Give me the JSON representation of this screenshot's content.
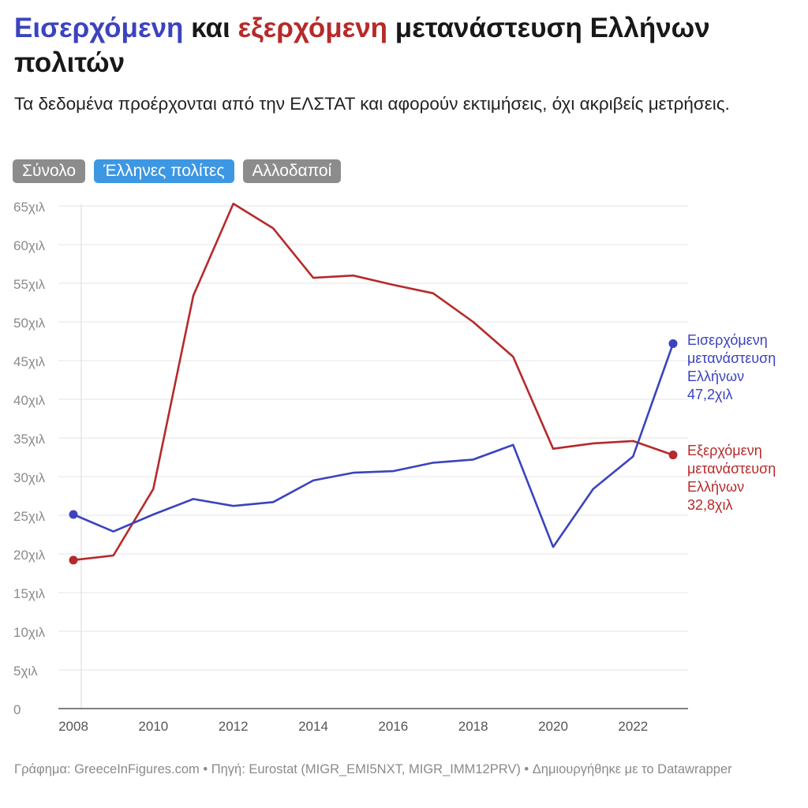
{
  "header": {
    "title_part1": "Εισερχόμενη",
    "title_part2": " και ",
    "title_part3": "εξερχόμενη",
    "title_part4": " μετανάστευση Ελλήνων πολιτών",
    "subtitle": "Τα δεδομένα προέρχονται από την ΕΛΣΤΑΤ και αφορούν εκτιμήσεις, όχι ακριβείς μετρήσεις."
  },
  "toggles": [
    {
      "label": "Σύνολο",
      "active": false
    },
    {
      "label": "Έλληνες πολίτες",
      "active": true
    },
    {
      "label": "Αλλοδαποί",
      "active": false
    }
  ],
  "colors": {
    "inbound": "#3b43be",
    "outbound": "#b62a2a",
    "grid": "#e6e6e6",
    "axis_text": "#8a8a8a",
    "toggle_active": "#3d97e3",
    "toggle_inactive": "#8c8c8c"
  },
  "chart_data": {
    "type": "line",
    "x": [
      2008,
      2009,
      2010,
      2011,
      2012,
      2013,
      2014,
      2015,
      2016,
      2017,
      2018,
      2019,
      2020,
      2021,
      2022,
      2023
    ],
    "x_ticks": [
      "2008",
      "2010",
      "2012",
      "2014",
      "2016",
      "2018",
      "2020",
      "2022"
    ],
    "x_tick_values": [
      2008,
      2010,
      2012,
      2014,
      2016,
      2018,
      2020,
      2022
    ],
    "y_ticks": [
      "0",
      "5χιλ",
      "10χιλ",
      "15χιλ",
      "20χιλ",
      "25χιλ",
      "30χιλ",
      "35χιλ",
      "40χιλ",
      "45χιλ",
      "50χιλ",
      "55χιλ",
      "60χιλ",
      "65χιλ"
    ],
    "y_tick_values": [
      0,
      5000,
      10000,
      15000,
      20000,
      25000,
      30000,
      35000,
      40000,
      45000,
      50000,
      55000,
      60000,
      65000
    ],
    "ylim": [
      0,
      65000
    ],
    "xlim": [
      2008,
      2023
    ],
    "grid": true,
    "series": [
      {
        "key": "inbound",
        "label_lines": [
          "Εισερχόμενη",
          "μετανάστευση",
          "Ελλήνων"
        ],
        "end_label": "47,2χιλ",
        "values": [
          25100,
          22900,
          25100,
          27100,
          26200,
          26700,
          29500,
          30500,
          30700,
          31800,
          32200,
          34100,
          20900,
          28400,
          32600,
          47200
        ]
      },
      {
        "key": "outbound",
        "label_lines": [
          "Εξερχόμενη",
          "μετανάστευση",
          "Ελλήνων"
        ],
        "end_label": "32,8χιλ",
        "values": [
          19200,
          19800,
          28400,
          53400,
          65300,
          62100,
          55700,
          56000,
          54800,
          53700,
          50000,
          45500,
          33600,
          34300,
          34600,
          32800
        ]
      }
    ]
  },
  "footer": {
    "text": "Γράφημα: GreeceInFigures.com • Πηγή: Eurostat (MIGR_EMI5NXT, MIGR_IMM12PRV) • Δημιουργήθηκε με το Datawrapper"
  }
}
